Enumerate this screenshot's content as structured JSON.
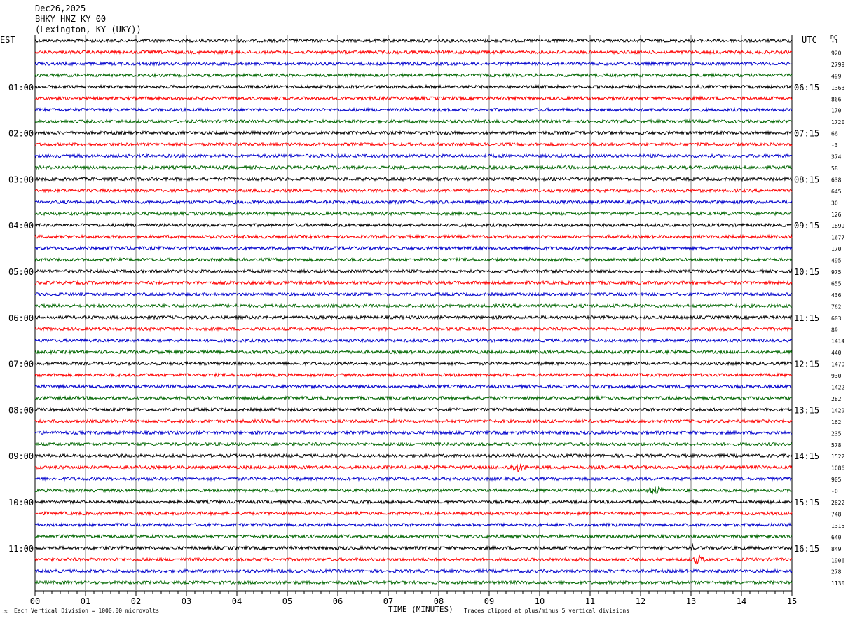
{
  "header": {
    "date": "Dec26,2025",
    "station": "BHKY HNZ KY 00",
    "location": "(Lexington, KY (UKY))"
  },
  "left_timezone": "EST",
  "right_timezone": "UTC",
  "dc_label": "DC",
  "footer": {
    "left_note": "Each Vertical Division = 1000.00 microvolts",
    "axis_title": "TIME (MINUTES)",
    "right_note": "Traces clipped at plus/minus 5 vertical divisions"
  },
  "chart_data": {
    "type": "line",
    "title": "",
    "xlabel": "TIME (MINUTES)",
    "xlim": [
      0,
      15
    ],
    "x_ticks": [
      "00",
      "01",
      "02",
      "03",
      "04",
      "05",
      "06",
      "07",
      "08",
      "09",
      "10",
      "11",
      "12",
      "13",
      "14",
      "15"
    ],
    "trace_colors": [
      "#000000",
      "#ff0000",
      "#0000cc",
      "#006600"
    ],
    "trace_count": 48,
    "left_hour_labels": [
      "01:00",
      "02:00",
      "03:00",
      "04:00",
      "05:00",
      "06:00",
      "07:00",
      "08:00",
      "09:00",
      "10:00",
      "11:00"
    ],
    "right_hour_labels": [
      "06:15",
      "07:15",
      "08:15",
      "09:15",
      "10:15",
      "11:15",
      "12:15",
      "13:15",
      "14:15",
      "15:15",
      "16:15"
    ],
    "dc_offsets": [
      "-1",
      "920",
      "2799",
      "499",
      "1363",
      "866",
      "170",
      "1720",
      "66",
      "-3",
      "374",
      "58",
      "638",
      "645",
      "30",
      "126",
      "1899",
      "1677",
      "170",
      "495",
      "975",
      "655",
      "436",
      "762",
      "603",
      "89",
      "1414",
      "440",
      "1470",
      "930",
      "1422",
      "282",
      "1429",
      "162",
      "235",
      "578",
      "1522",
      "1086",
      "905",
      "-0",
      "2622",
      "748",
      "1315",
      "640",
      "849",
      "1906",
      "278",
      "1130"
    ],
    "events": [
      {
        "trace": 37,
        "start_min": 9.35,
        "end_min": 9.75
      },
      {
        "trace": 39,
        "start_min": 12.1,
        "end_min": 12.5
      },
      {
        "trace": 44,
        "start_min": 13.0,
        "end_min": 13.05
      },
      {
        "trace": 45,
        "start_min": 13.0,
        "end_min": 13.3
      }
    ]
  }
}
